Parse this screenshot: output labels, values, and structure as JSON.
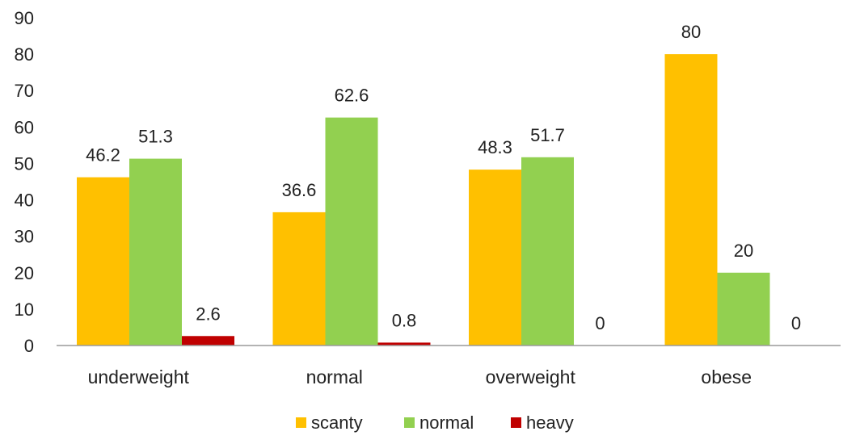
{
  "chart_data": {
    "type": "bar",
    "title": "",
    "xlabel": "",
    "ylabel": "",
    "ylim": [
      0,
      90
    ],
    "yticks": [
      0,
      10,
      20,
      30,
      40,
      50,
      60,
      70,
      80,
      90
    ],
    "grid": false,
    "legend_position": "bottom",
    "categories": [
      "underweight",
      "normal",
      "overweight",
      "obese"
    ],
    "series": [
      {
        "name": "scanty",
        "color": "#FFC000",
        "values": [
          46.2,
          36.6,
          48.3,
          80
        ]
      },
      {
        "name": "normal",
        "color": "#92D050",
        "values": [
          51.3,
          62.6,
          51.7,
          20
        ]
      },
      {
        "name": "heavy",
        "color": "#C00000",
        "values": [
          2.6,
          0.8,
          0,
          0
        ]
      }
    ],
    "data_labels": [
      [
        "46.2",
        "51.3",
        "2.6"
      ],
      [
        "36.6",
        "62.6",
        "0.8"
      ],
      [
        "48.3",
        "51.7",
        "0"
      ],
      [
        "80",
        "20",
        "0"
      ]
    ]
  }
}
